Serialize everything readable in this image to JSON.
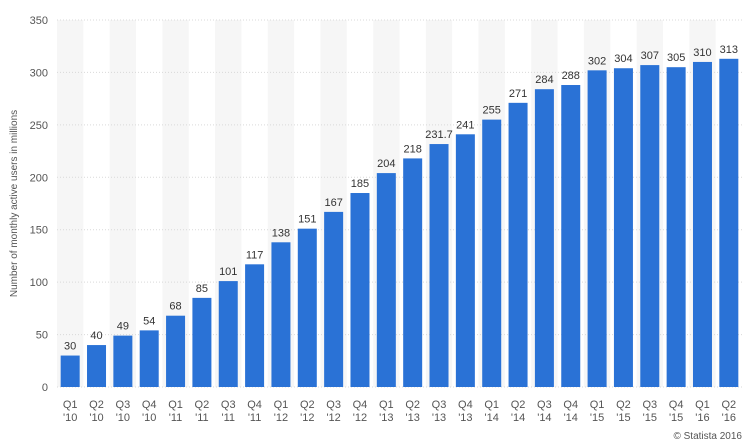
{
  "chart_data": {
    "type": "bar",
    "ylabel": "Number of monthly active users in millions",
    "ylim": [
      0,
      350
    ],
    "yticks": [
      0,
      50,
      100,
      150,
      200,
      250,
      300,
      350
    ],
    "grid": true,
    "bar_color": "#2a72d6",
    "band_color": "#f6f6f6",
    "categories": [
      {
        "q": "Q1",
        "y": "'10"
      },
      {
        "q": "Q2",
        "y": "'10"
      },
      {
        "q": "Q3",
        "y": "'10"
      },
      {
        "q": "Q4",
        "y": "'10"
      },
      {
        "q": "Q1",
        "y": "'11"
      },
      {
        "q": "Q2",
        "y": "'11"
      },
      {
        "q": "Q3",
        "y": "'11"
      },
      {
        "q": "Q4",
        "y": "'11"
      },
      {
        "q": "Q1",
        "y": "'12"
      },
      {
        "q": "Q2",
        "y": "'12"
      },
      {
        "q": "Q3",
        "y": "'12"
      },
      {
        "q": "Q4",
        "y": "'12"
      },
      {
        "q": "Q1",
        "y": "'13"
      },
      {
        "q": "Q2",
        "y": "'13"
      },
      {
        "q": "Q3",
        "y": "'13"
      },
      {
        "q": "Q4",
        "y": "'13"
      },
      {
        "q": "Q1",
        "y": "'14"
      },
      {
        "q": "Q2",
        "y": "'14"
      },
      {
        "q": "Q3",
        "y": "'14"
      },
      {
        "q": "Q4",
        "y": "'14"
      },
      {
        "q": "Q1",
        "y": "'15"
      },
      {
        "q": "Q2",
        "y": "'15"
      },
      {
        "q": "Q3",
        "y": "'15"
      },
      {
        "q": "Q4",
        "y": "'15"
      },
      {
        "q": "Q1",
        "y": "'16"
      },
      {
        "q": "Q2",
        "y": "'16"
      }
    ],
    "values": [
      30,
      40,
      49,
      54,
      68,
      85,
      101,
      117,
      138,
      151,
      167,
      185,
      204,
      218,
      231.7,
      241,
      255,
      271,
      284,
      288,
      302,
      304,
      307,
      305,
      310,
      313
    ]
  },
  "credit": "© Statista 2016"
}
